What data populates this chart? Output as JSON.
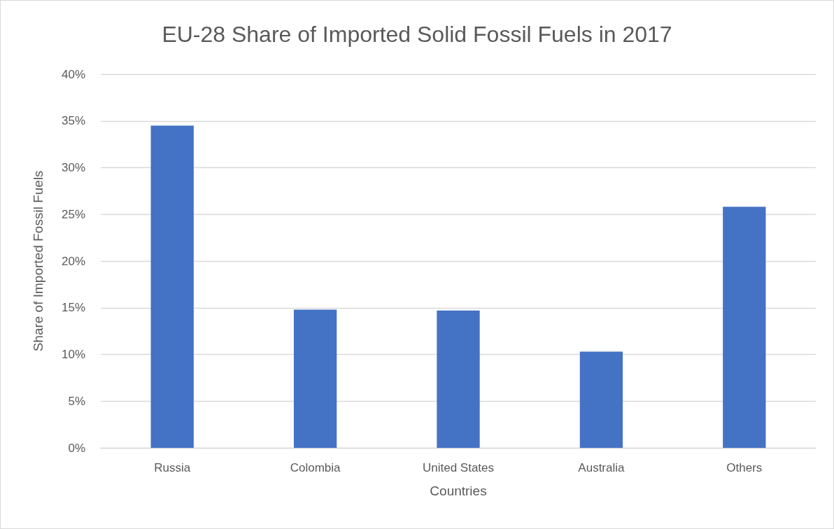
{
  "chart_data": {
    "type": "bar",
    "title": "EU-28 Share of Imported Solid Fossil Fuels in 2017",
    "xlabel": "Countries",
    "ylabel": "Share of Imported Fossil Fuels",
    "categories": [
      "Russia",
      "Colombia",
      "United States",
      "Australia",
      "Others"
    ],
    "values": [
      34.5,
      14.8,
      14.7,
      10.3,
      25.8
    ],
    "color": "#4472c4",
    "ylim": [
      0,
      40
    ],
    "yticks": [
      {
        "value": 0,
        "label": "0%"
      },
      {
        "value": 5,
        "label": "5%"
      },
      {
        "value": 10,
        "label": "10%"
      },
      {
        "value": 15,
        "label": "15%"
      },
      {
        "value": 20,
        "label": "20%"
      },
      {
        "value": 25,
        "label": "25%"
      },
      {
        "value": 30,
        "label": "30%"
      },
      {
        "value": 35,
        "label": "35%"
      },
      {
        "value": 40,
        "label": "40%"
      }
    ],
    "grid": "y"
  }
}
